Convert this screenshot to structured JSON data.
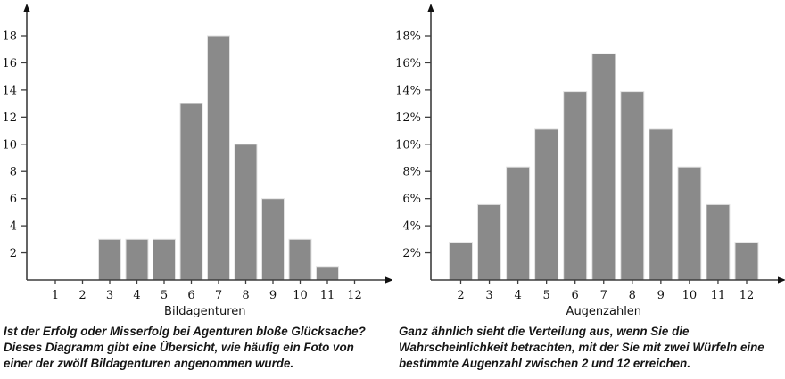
{
  "figures": [
    {
      "caption": "Ist der Erfolg oder Misserfolg bei Agenturen bloße Glücksache? Dieses Diagramm gibt eine Übersicht, wie häufig ein Foto von einer der zwölf Bildagenturen angenommen wurde."
    },
    {
      "caption": "Ganz ähnlich sieht die Verteilung aus, wenn Sie die Wahrscheinlichkeit betrachten, mit der Sie mit zwei Würfeln eine bestimmte Augenzahl zwischen 2 und 12 erreichen."
    }
  ],
  "chart_data": [
    {
      "type": "bar",
      "title": "",
      "xlabel": "Bildagenturen",
      "ylabel": "",
      "categories": [
        "1",
        "2",
        "3",
        "4",
        "5",
        "6",
        "7",
        "8",
        "9",
        "10",
        "11",
        "12"
      ],
      "values": [
        0,
        0,
        3,
        3,
        3,
        13,
        18,
        10,
        6,
        3,
        1,
        0
      ],
      "ylim": [
        0,
        19
      ],
      "y_ticks": [
        2,
        4,
        6,
        8,
        10,
        12,
        14,
        16,
        18
      ],
      "y_tick_labels": [
        "2",
        "4",
        "6",
        "8",
        "10",
        "12",
        "14",
        "16",
        "18"
      ],
      "grid": false,
      "legend": "none",
      "bar_color": "#8a8a8a",
      "bar_edge_color": "#e2e2e2",
      "axis_color": "#3d3d3d"
    },
    {
      "type": "bar",
      "title": "",
      "xlabel": "Augenzahlen",
      "ylabel": "",
      "categories": [
        "2",
        "3",
        "4",
        "5",
        "6",
        "7",
        "8",
        "9",
        "10",
        "11",
        "12"
      ],
      "values": [
        2.78,
        5.56,
        8.33,
        11.11,
        13.89,
        16.67,
        13.89,
        11.11,
        8.33,
        5.56,
        2.78
      ],
      "ylim": [
        0,
        19
      ],
      "y_ticks": [
        2,
        4,
        6,
        8,
        10,
        12,
        14,
        16,
        18
      ],
      "y_tick_labels": [
        "2%",
        "4%",
        "6%",
        "8%",
        "10%",
        "12%",
        "14%",
        "16%",
        "18%"
      ],
      "grid": false,
      "legend": "none",
      "bar_color": "#8a8a8a",
      "bar_edge_color": "#e2e2e2",
      "axis_color": "#3d3d3d"
    }
  ]
}
